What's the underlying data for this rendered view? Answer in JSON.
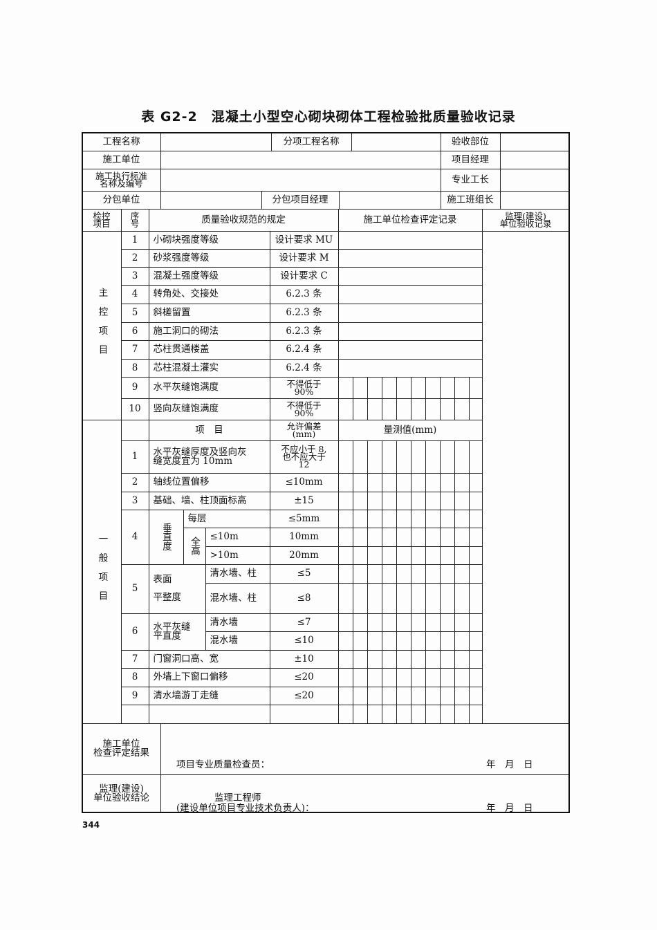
{
  "title": "表 G2-2　混凝土小型空心砌块砌体工程检验批质量验收记录",
  "header": {
    "project_name_label": "工程名称",
    "sub_item_label": "分项工程名称",
    "acceptance_part_label": "验收部位",
    "construction_unit_label": "施工单位",
    "project_manager_label": "项目经理",
    "standard_label": "施工执行标准\n名称及编号",
    "foreman_label": "专业工长",
    "subcontract_unit_label": "分包单位",
    "subcontract_manager_label": "分包项目经理",
    "team_leader_label": "施工班组长"
  },
  "columns": {
    "check_item": "检控\n项目",
    "seq": "序\n号",
    "spec": "质量验收规范的规定",
    "construction_record": "施工单位检查评定记录",
    "supervision_record": "监理(建设)\n单位验收记录"
  },
  "main_control": {
    "label": "主控项目",
    "items": [
      {
        "no": "1",
        "name": "小砌块强度等级",
        "req": "设计要求 MU"
      },
      {
        "no": "2",
        "name": "砂浆强度等级",
        "req": "设计要求 M"
      },
      {
        "no": "3",
        "name": "混凝土强度等级",
        "req": "设计要求 C"
      },
      {
        "no": "4",
        "name": "转角处、交接处",
        "req": "6.2.3 条"
      },
      {
        "no": "5",
        "name": "斜槎留置",
        "req": "6.2.3 条"
      },
      {
        "no": "6",
        "name": "施工洞口的砌法",
        "req": "6.2.3 条"
      },
      {
        "no": "7",
        "name": "芯柱贯通楼盖",
        "req": "6.2.4 条"
      },
      {
        "no": "8",
        "name": "芯柱混凝土灌实",
        "req": "6.2.4 条"
      },
      {
        "no": "9",
        "name": "水平灰缝饱满度",
        "req": "不得低于\n90%"
      },
      {
        "no": "10",
        "name": "竖向灰缝饱满度",
        "req": "不得低于\n90%"
      }
    ]
  },
  "general": {
    "label": "一般项目",
    "item_header": "项　目",
    "tolerance_header": "允许偏差\n(mm)",
    "measured_header": "量测值(mm)",
    "item1": {
      "no": "1",
      "name": "水平灰缝厚度及竖向灰\n缝宽度宜为 10mm",
      "tol": "不应小于 8,\n也不应大于\n12"
    },
    "item2": {
      "no": "2",
      "name": "轴线位置偏移",
      "tol": "≤10mm"
    },
    "item3": {
      "no": "3",
      "name": "基础、墙、柱顶面标高",
      "tol": "±15"
    },
    "item4": {
      "no": "4",
      "name": "垂直度",
      "per_floor": "每层",
      "per_floor_tol": "≤5mm",
      "full_height": "全高",
      "le10": "≤10m",
      "le10_tol": "10mm",
      "gt10": ">10m",
      "gt10_tol": "20mm"
    },
    "item5": {
      "no": "5",
      "name": "表面\n\n平整度",
      "clear": "清水墙、柱",
      "clear_tol": "≤5",
      "mixed": "混水墙、柱",
      "mixed_tol": "≤8"
    },
    "item6": {
      "no": "6",
      "name": "水平灰缝\n平直度",
      "clear": "清水墙",
      "clear_tol": "≤7",
      "mixed": "混水墙",
      "mixed_tol": "≤10"
    },
    "item7": {
      "no": "7",
      "name": "门窗洞口高、宽",
      "tol": "±10"
    },
    "item8": {
      "no": "8",
      "name": "外墙上下窗口偏移",
      "tol": "≤20"
    },
    "item9": {
      "no": "9",
      "name": "清水墙游丁走缝",
      "tol": "≤20"
    }
  },
  "footer": {
    "construction_result_label": "施工单位\n检查评定结果",
    "inspector_label": "项目专业质量检查员：",
    "date_label": "年　月　日",
    "supervision_label": "监理(建设)\n单位验收结论",
    "engineer_label": "监理工程师",
    "engineer_sub_label": "(建设单位项目专业技术负责人)："
  },
  "page_number": "344"
}
